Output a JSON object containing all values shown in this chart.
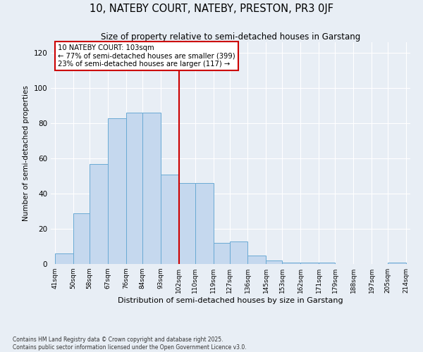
{
  "title": "10, NATEBY COURT, NATEBY, PRESTON, PR3 0JF",
  "subtitle": "Size of property relative to semi-detached houses in Garstang",
  "xlabel": "Distribution of semi-detached houses by size in Garstang",
  "ylabel": "Number of semi-detached properties",
  "bins": [
    41,
    50,
    58,
    67,
    76,
    84,
    93,
    102,
    110,
    119,
    127,
    136,
    145,
    153,
    162,
    171,
    179,
    188,
    197,
    205,
    214
  ],
  "bar_heights": [
    6,
    29,
    57,
    83,
    86,
    86,
    51,
    46,
    46,
    12,
    13,
    5,
    2,
    1,
    1,
    1,
    0,
    0,
    0,
    1
  ],
  "bar_color": "#c5d8ee",
  "bar_edge_color": "#6aaad4",
  "vline_x": 102,
  "vline_color": "#cc0000",
  "annotation_title": "10 NATEBY COURT: 103sqm",
  "annotation_line1": "← 77% of semi-detached houses are smaller (399)",
  "annotation_line2": "23% of semi-detached houses are larger (117) →",
  "annotation_box_color": "white",
  "annotation_box_edge_color": "#cc0000",
  "ylim": [
    0,
    126
  ],
  "yticks": [
    0,
    20,
    40,
    60,
    80,
    100,
    120
  ],
  "tick_labels": [
    "41sqm",
    "50sqm",
    "58sqm",
    "67sqm",
    "76sqm",
    "84sqm",
    "93sqm",
    "102sqm",
    "110sqm",
    "119sqm",
    "127sqm",
    "136sqm",
    "145sqm",
    "153sqm",
    "162sqm",
    "171sqm",
    "179sqm",
    "188sqm",
    "197sqm",
    "205sqm",
    "214sqm"
  ],
  "footnote1": "Contains HM Land Registry data © Crown copyright and database right 2025.",
  "footnote2": "Contains public sector information licensed under the Open Government Licence v3.0.",
  "bg_color": "#e8eef5",
  "grid_color": "white",
  "title_fontsize": 10.5,
  "subtitle_fontsize": 8.5,
  "ylabel_fontsize": 7.5,
  "xlabel_fontsize": 8.0
}
